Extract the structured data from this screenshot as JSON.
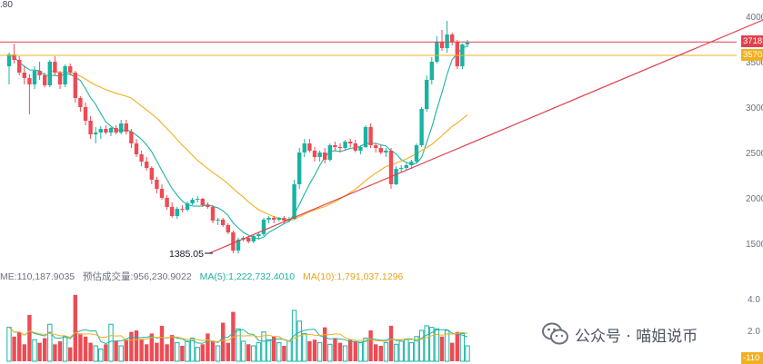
{
  "top_fragment": ".80",
  "volume_header": {
    "vol": "ME:110,187.9035",
    "est": "预估成交量:956,230.9022",
    "ma5": "MA(5):1,222,732.4010",
    "ma10": "MA(10):1,791,037.1296"
  },
  "watermark": {
    "text": "公众号 · 喵姐说币",
    "icon": "wechat-icon"
  },
  "low_annotation": "1385.05",
  "badges": {
    "resistance": "3718",
    "support": "3570",
    "volume_scale": "-110"
  },
  "colors": {
    "up": "#17b3a3",
    "down": "#ee4b55",
    "ma_fast": "#1eb3a4",
    "ma_slow": "#f2b01e",
    "resistance": "#e2404b",
    "support": "#f2b01e",
    "trendline": "#e2404b"
  },
  "chart_data": {
    "type": "candlestick",
    "y_axis": {
      "ticks": [
        "4000",
        "3500",
        "3000",
        "2500",
        "2000",
        "1500"
      ],
      "range": [
        1300,
        4100
      ]
    },
    "volume_axis": {
      "ticks": [
        "4.0",
        "2.0"
      ]
    },
    "levels": {
      "resistance": 3718,
      "support": 3570
    },
    "low_marker": 1385.05,
    "candles": [
      [
        3450,
        3600,
        3250,
        3580
      ],
      [
        3580,
        3700,
        3480,
        3520
      ],
      [
        3520,
        3560,
        3350,
        3380
      ],
      [
        3380,
        3450,
        3250,
        3320
      ],
      [
        3320,
        3360,
        2920,
        3250
      ],
      [
        3250,
        3450,
        3200,
        3400
      ],
      [
        3400,
        3500,
        3300,
        3350
      ],
      [
        3350,
        3380,
        3220,
        3240
      ],
      [
        3240,
        3520,
        3220,
        3500
      ],
      [
        3500,
        3560,
        3350,
        3380
      ],
      [
        3380,
        3400,
        3200,
        3250
      ],
      [
        3250,
        3470,
        3220,
        3450
      ],
      [
        3450,
        3480,
        3350,
        3380
      ],
      [
        3380,
        3400,
        3050,
        3100
      ],
      [
        3100,
        3120,
        2950,
        3000
      ],
      [
        3000,
        3050,
        2800,
        2850
      ],
      [
        2850,
        2900,
        2650,
        2700
      ],
      [
        2700,
        2780,
        2600,
        2720
      ],
      [
        2720,
        2790,
        2650,
        2760
      ],
      [
        2760,
        2800,
        2700,
        2720
      ],
      [
        2720,
        2780,
        2680,
        2770
      ],
      [
        2770,
        2800,
        2700,
        2720
      ],
      [
        2720,
        2860,
        2700,
        2820
      ],
      [
        2820,
        2860,
        2700,
        2730
      ],
      [
        2730,
        2760,
        2550,
        2600
      ],
      [
        2600,
        2650,
        2450,
        2480
      ],
      [
        2480,
        2520,
        2350,
        2400
      ],
      [
        2400,
        2450,
        2300,
        2330
      ],
      [
        2330,
        2350,
        2150,
        2200
      ],
      [
        2200,
        2230,
        2050,
        2100
      ],
      [
        2100,
        2150,
        1980,
        2000
      ],
      [
        2000,
        2030,
        1870,
        1900
      ],
      [
        1900,
        1950,
        1780,
        1800
      ],
      [
        1800,
        1900,
        1770,
        1880
      ],
      [
        1880,
        1920,
        1840,
        1870
      ],
      [
        1870,
        1960,
        1850,
        1940
      ],
      [
        1940,
        2000,
        1920,
        1980
      ],
      [
        1980,
        2020,
        1950,
        1990
      ],
      [
        1990,
        2000,
        1900,
        1920
      ],
      [
        1920,
        1950,
        1880,
        1900
      ],
      [
        1900,
        1920,
        1720,
        1750
      ],
      [
        1750,
        1780,
        1700,
        1760
      ],
      [
        1760,
        1780,
        1680,
        1700
      ],
      [
        1700,
        1720,
        1600,
        1620
      ],
      [
        1620,
        1640,
        1390,
        1420
      ],
      [
        1420,
        1560,
        1385,
        1540
      ],
      [
        1540,
        1580,
        1520,
        1560
      ],
      [
        1560,
        1580,
        1500,
        1520
      ],
      [
        1520,
        1600,
        1500,
        1580
      ],
      [
        1580,
        1620,
        1540,
        1600
      ],
      [
        1600,
        1780,
        1580,
        1760
      ],
      [
        1760,
        1800,
        1720,
        1780
      ],
      [
        1780,
        1800,
        1720,
        1760
      ],
      [
        1760,
        1790,
        1740,
        1780
      ],
      [
        1780,
        1800,
        1720,
        1750
      ],
      [
        1750,
        1790,
        1730,
        1770
      ],
      [
        1770,
        2200,
        1760,
        2150
      ],
      [
        2150,
        2550,
        2100,
        2500
      ],
      [
        2500,
        2650,
        2450,
        2600
      ],
      [
        2600,
        2650,
        2500,
        2520
      ],
      [
        2520,
        2560,
        2400,
        2450
      ],
      [
        2450,
        2520,
        2400,
        2500
      ],
      [
        2500,
        2550,
        2380,
        2420
      ],
      [
        2420,
        2600,
        2400,
        2580
      ],
      [
        2580,
        2620,
        2520,
        2560
      ],
      [
        2560,
        2600,
        2500,
        2550
      ],
      [
        2550,
        2640,
        2530,
        2620
      ],
      [
        2620,
        2650,
        2560,
        2600
      ],
      [
        2600,
        2640,
        2500,
        2520
      ],
      [
        2520,
        2580,
        2480,
        2560
      ],
      [
        2560,
        2800,
        2550,
        2780
      ],
      [
        2780,
        2820,
        2550,
        2580
      ],
      [
        2580,
        2600,
        2500,
        2550
      ],
      [
        2550,
        2580,
        2480,
        2500
      ],
      [
        2500,
        2550,
        2450,
        2520
      ],
      [
        2520,
        2550,
        2100,
        2150
      ],
      [
        2150,
        2350,
        2140,
        2320
      ],
      [
        2320,
        2360,
        2280,
        2330
      ],
      [
        2330,
        2380,
        2300,
        2360
      ],
      [
        2360,
        2420,
        2320,
        2400
      ],
      [
        2400,
        2600,
        2380,
        2580
      ],
      [
        2580,
        3000,
        2560,
        2980
      ],
      [
        2980,
        3350,
        2950,
        3300
      ],
      [
        3300,
        3550,
        3250,
        3500
      ],
      [
        3500,
        3780,
        3480,
        3720
      ],
      [
        3720,
        3850,
        3620,
        3650
      ],
      [
        3650,
        3950,
        3600,
        3800
      ],
      [
        3800,
        3820,
        3680,
        3720
      ],
      [
        3720,
        3740,
        3420,
        3450
      ],
      [
        3450,
        3700,
        3420,
        3690
      ],
      [
        3690,
        3740,
        3660,
        3710
      ]
    ],
    "volumes": [
      2.2,
      1.6,
      1.9,
      1.1,
      3.0,
      1.4,
      1.2,
      1.5,
      2.4,
      1.1,
      1.3,
      1.6,
      0.9,
      4.3,
      1.8,
      1.6,
      1.2,
      1.0,
      0.8,
      1.1,
      2.4,
      1.3,
      1.0,
      1.4,
      1.9,
      2.0,
      1.4,
      1.1,
      1.8,
      1.2,
      2.3,
      1.1,
      1.7,
      1.2,
      1.0,
      1.3,
      1.5,
      0.9,
      1.1,
      1.8,
      1.3,
      1.0,
      2.5,
      1.2,
      3.2,
      2.1,
      1.3,
      1.1,
      1.0,
      1.2,
      1.9,
      1.4,
      1.6,
      1.2,
      1.0,
      1.3,
      3.3,
      2.6,
      1.8,
      1.3,
      1.4,
      1.2,
      2.2,
      1.1,
      1.5,
      1.2,
      1.0,
      1.4,
      1.3,
      1.2,
      1.5,
      2.0,
      1.1,
      1.0,
      1.2,
      2.3,
      1.1,
      1.3,
      1.4,
      1.2,
      1.6,
      2.0,
      2.3,
      2.2,
      2.1,
      1.6,
      2.0,
      1.2,
      1.9,
      1.8,
      1.0
    ]
  }
}
